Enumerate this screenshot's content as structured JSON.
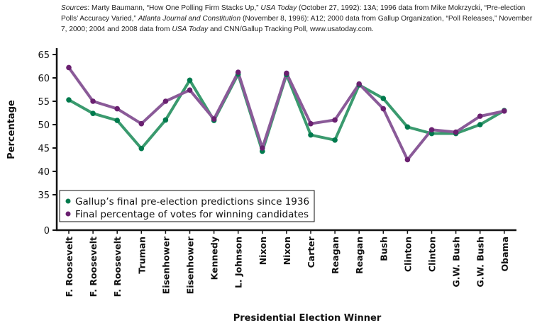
{
  "sources": {
    "label": "Sources",
    "text_parts": [
      {
        "t": ": Marty Baumann, “How One Polling Firm Stacks Up,” ",
        "i": false
      },
      {
        "t": "USA Today",
        "i": true
      },
      {
        "t": " (October 27, 1992): 13A; 1996 data from Mike Mokrzycki, “Pre-election Polls’ Accuracy Varied,” ",
        "i": false
      },
      {
        "t": "Atlanta Journal and Constitution",
        "i": true
      },
      {
        "t": " (November 8, 1996): A12; 2000 data from Gallup Organization, “Poll Releases,” November 7, 2000; 2004 and 2008 data from ",
        "i": false
      },
      {
        "t": "USA Today",
        "i": true
      },
      {
        "t": " and CNN/Gallup Tracking Poll, www.usatoday.com.",
        "i": false
      }
    ]
  },
  "chart_data": {
    "type": "line",
    "xlabel": "Presidential Election Winner",
    "ylabel": "Percentage",
    "yticks": [
      0,
      35,
      40,
      45,
      50,
      55,
      60,
      65
    ],
    "ylim": [
      0,
      65
    ],
    "y_axis_break": [
      0,
      35
    ],
    "grid": false,
    "legend_position": "bottom-left",
    "categories": [
      "F. Roosevelt",
      "F. Roosevelt",
      "F. Roosevelt",
      "Truman",
      "Eisenhower",
      "Eisenhower",
      "Kennedy",
      "L. Johnson",
      "Nixon",
      "Nixon",
      "Carter",
      "Reagan",
      "Reagan",
      "Bush",
      "Clinton",
      "Clinton",
      "G.W. Bush",
      "G.W. Bush",
      "Obama"
    ],
    "series": [
      {
        "name": "Gallup’s final pre-election predictions since 1936",
        "color": "#007a4d",
        "line_color": "#3a9a6e",
        "values": [
          55.3,
          52.4,
          50.9,
          44.9,
          51.0,
          59.5,
          50.9,
          60.8,
          44.3,
          60.7,
          47.8,
          46.7,
          58.5,
          55.6,
          49.5,
          48.1,
          48.1,
          50.0,
          53.0
        ]
      },
      {
        "name": "Final percentage of votes for winning candidates",
        "color": "#6a2070",
        "line_color": "#8a5a98",
        "values": [
          62.2,
          55.0,
          53.4,
          50.2,
          55.0,
          57.4,
          51.2,
          61.2,
          45.0,
          61.0,
          50.2,
          51.0,
          58.7,
          53.4,
          42.5,
          48.9,
          48.4,
          51.8,
          52.9
        ]
      }
    ]
  }
}
